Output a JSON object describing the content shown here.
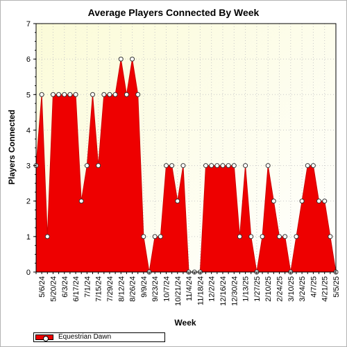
{
  "chart_data": {
    "type": "area",
    "title": "Average Players Connected By Week",
    "xlabel": "Week",
    "ylabel": "Players Connected",
    "ylim": [
      0,
      7
    ],
    "yticks": [
      0,
      1,
      2,
      3,
      4,
      5,
      6,
      7
    ],
    "x_tick_labels": [
      "5/6/24",
      "5/20/24",
      "6/3/24",
      "6/17/24",
      "7/1/24",
      "7/15/24",
      "7/29/24",
      "8/12/24",
      "8/26/24",
      "9/9/24",
      "9/23/24",
      "10/7/24",
      "10/21/24",
      "11/4/24",
      "11/18/24",
      "12/2/24",
      "12/16/24",
      "12/30/24",
      "1/13/25",
      "1/27/25",
      "2/10/25",
      "2/24/25",
      "3/10/25",
      "3/24/25",
      "4/7/25",
      "4/21/25",
      "5/5/25"
    ],
    "grid": true,
    "legend_position": "bottom-left",
    "series": [
      {
        "name": "Equestrian Dawn",
        "color": "#ee0000",
        "x": [
          "4/29/24",
          "5/6/24",
          "5/13/24",
          "5/20/24",
          "5/27/24",
          "6/3/24",
          "6/10/24",
          "6/17/24",
          "6/24/24",
          "7/1/24",
          "7/8/24",
          "7/15/24",
          "7/22/24",
          "7/29/24",
          "8/5/24",
          "8/12/24",
          "8/19/24",
          "8/26/24",
          "9/2/24",
          "9/9/24",
          "9/16/24",
          "9/23/24",
          "9/30/24",
          "10/7/24",
          "10/14/24",
          "10/21/24",
          "10/28/24",
          "11/4/24",
          "11/11/24",
          "11/18/24",
          "11/25/24",
          "12/2/24",
          "12/9/24",
          "12/16/24",
          "12/23/24",
          "12/30/24",
          "1/6/25",
          "1/13/25",
          "1/20/25",
          "1/27/25",
          "2/3/25",
          "2/10/25",
          "2/17/25",
          "2/24/25",
          "3/3/25",
          "3/10/25",
          "3/17/25",
          "3/24/25",
          "3/31/25",
          "4/7/25",
          "4/14/25",
          "4/21/25",
          "4/28/25",
          "5/5/25"
        ],
        "values": [
          3,
          5,
          1,
          5,
          5,
          5,
          5,
          5,
          2,
          3,
          5,
          3,
          5,
          5,
          5,
          6,
          5,
          6,
          5,
          1,
          0,
          1,
          1,
          3,
          3,
          2,
          3,
          0,
          0,
          0,
          3,
          3,
          3,
          3,
          3,
          3,
          1,
          3,
          1,
          0,
          1,
          3,
          2,
          1,
          1,
          0,
          1,
          2,
          3,
          3,
          2,
          2,
          1,
          0
        ]
      }
    ]
  }
}
